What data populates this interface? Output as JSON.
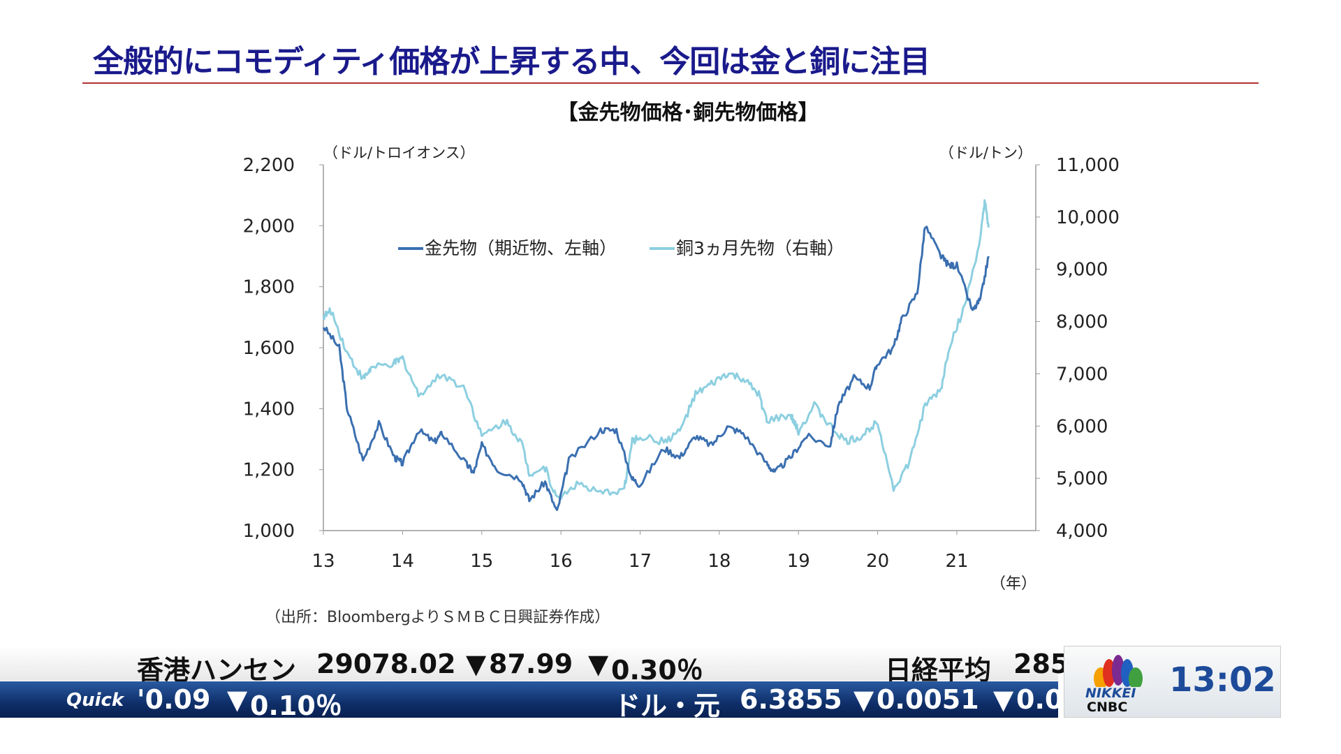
{
  "title": "全般的にコモディティ価格が上昇する中、今回は金と銅に注目",
  "source": "（出所：BloombergよりＳＭＢＣ日興証券作成）",
  "chart_data": {
    "type": "line",
    "title": "【金先物価格･銅先物価格】",
    "left_unit": "（ドル/トロイオンス）",
    "right_unit": "（ドル/トン）",
    "x_unit": "（年）",
    "xlim": [
      13,
      22
    ],
    "ylim_left": [
      1000,
      2200
    ],
    "ylim_right": [
      4000,
      11000
    ],
    "x_ticks": [
      "13",
      "14",
      "15",
      "16",
      "17",
      "18",
      "19",
      "20",
      "21"
    ],
    "y_ticks_left": [
      "1,000",
      "1,200",
      "1,400",
      "1,600",
      "1,800",
      "2,000",
      "2,200"
    ],
    "y_ticks_right": [
      "4,000",
      "5,000",
      "6,000",
      "7,000",
      "8,000",
      "9,000",
      "10,000",
      "11,000"
    ],
    "legend_placement": "top-center",
    "series": [
      {
        "name": "金先物（期近物、左軸）",
        "axis": "left",
        "color": "#3a6fb0",
        "x": [
          13.0,
          13.2,
          13.3,
          13.5,
          13.7,
          13.9,
          14.0,
          14.2,
          14.4,
          14.5,
          14.8,
          14.9,
          15.0,
          15.2,
          15.5,
          15.6,
          15.8,
          15.95,
          16.1,
          16.5,
          16.7,
          16.9,
          17.0,
          17.3,
          17.5,
          17.7,
          17.9,
          18.1,
          18.3,
          18.6,
          18.7,
          18.9,
          19.1,
          19.4,
          19.5,
          19.7,
          19.9,
          20.0,
          20.2,
          20.3,
          20.5,
          20.6,
          20.8,
          20.9,
          21.0,
          21.2,
          21.3,
          21.4
        ],
        "y": [
          1670,
          1600,
          1400,
          1230,
          1350,
          1240,
          1220,
          1330,
          1290,
          1320,
          1220,
          1190,
          1280,
          1200,
          1170,
          1100,
          1160,
          1060,
          1230,
          1330,
          1330,
          1170,
          1150,
          1270,
          1240,
          1310,
          1280,
          1340,
          1320,
          1220,
          1190,
          1240,
          1310,
          1280,
          1410,
          1500,
          1470,
          1550,
          1600,
          1690,
          1780,
          2000,
          1900,
          1870,
          1870,
          1720,
          1760,
          1900
        ]
      },
      {
        "name": "銅3ヵ月先物（右軸）",
        "axis": "right",
        "color": "#8ccfe0",
        "x": [
          13.0,
          13.1,
          13.3,
          13.5,
          13.6,
          13.9,
          14.0,
          14.2,
          14.5,
          14.8,
          15.0,
          15.3,
          15.5,
          15.6,
          15.8,
          15.95,
          16.2,
          16.5,
          16.8,
          16.9,
          17.0,
          17.3,
          17.5,
          17.7,
          17.9,
          18.1,
          18.3,
          18.5,
          18.6,
          18.9,
          19.0,
          19.2,
          19.4,
          19.6,
          19.8,
          20.0,
          20.2,
          20.4,
          20.6,
          20.8,
          20.9,
          21.1,
          21.3,
          21.35,
          21.4
        ],
        "y": [
          8100,
          8200,
          7400,
          6900,
          7100,
          7200,
          7300,
          6600,
          7000,
          6700,
          5800,
          6100,
          5700,
          5100,
          5200,
          4600,
          4900,
          4700,
          4800,
          5700,
          5800,
          5700,
          5900,
          6600,
          6800,
          7000,
          6900,
          6600,
          6100,
          6200,
          5900,
          6400,
          6000,
          5700,
          5800,
          6100,
          4800,
          5300,
          6400,
          6700,
          7500,
          8300,
          9600,
          10300,
          9800
        ]
      }
    ]
  },
  "ticker": {
    "top": [
      {
        "text": "香港ハンセン"
      },
      {
        "text": "29078.02"
      },
      {
        "text": "▼",
        "down": true
      },
      {
        "text": "87.99"
      },
      {
        "text": "▼",
        "down": true
      },
      {
        "text": "0.30％"
      },
      {
        "text": "日経平均"
      },
      {
        "text": "285"
      }
    ],
    "bottom_logo": "Quick",
    "bottom": [
      {
        "text": "'0.09"
      },
      {
        "text": "▼",
        "down": true
      },
      {
        "text": "0.10％"
      },
      {
        "text": "ドル・元"
      },
      {
        "text": "6.3855"
      },
      {
        "text": "▼",
        "down": true
      },
      {
        "text": "0.0051"
      },
      {
        "text": "▼",
        "down": true
      },
      {
        "text": "0.0"
      }
    ]
  },
  "logo": {
    "line1": "NIKKEI",
    "line2": "CNBC"
  },
  "clock": "13:02"
}
